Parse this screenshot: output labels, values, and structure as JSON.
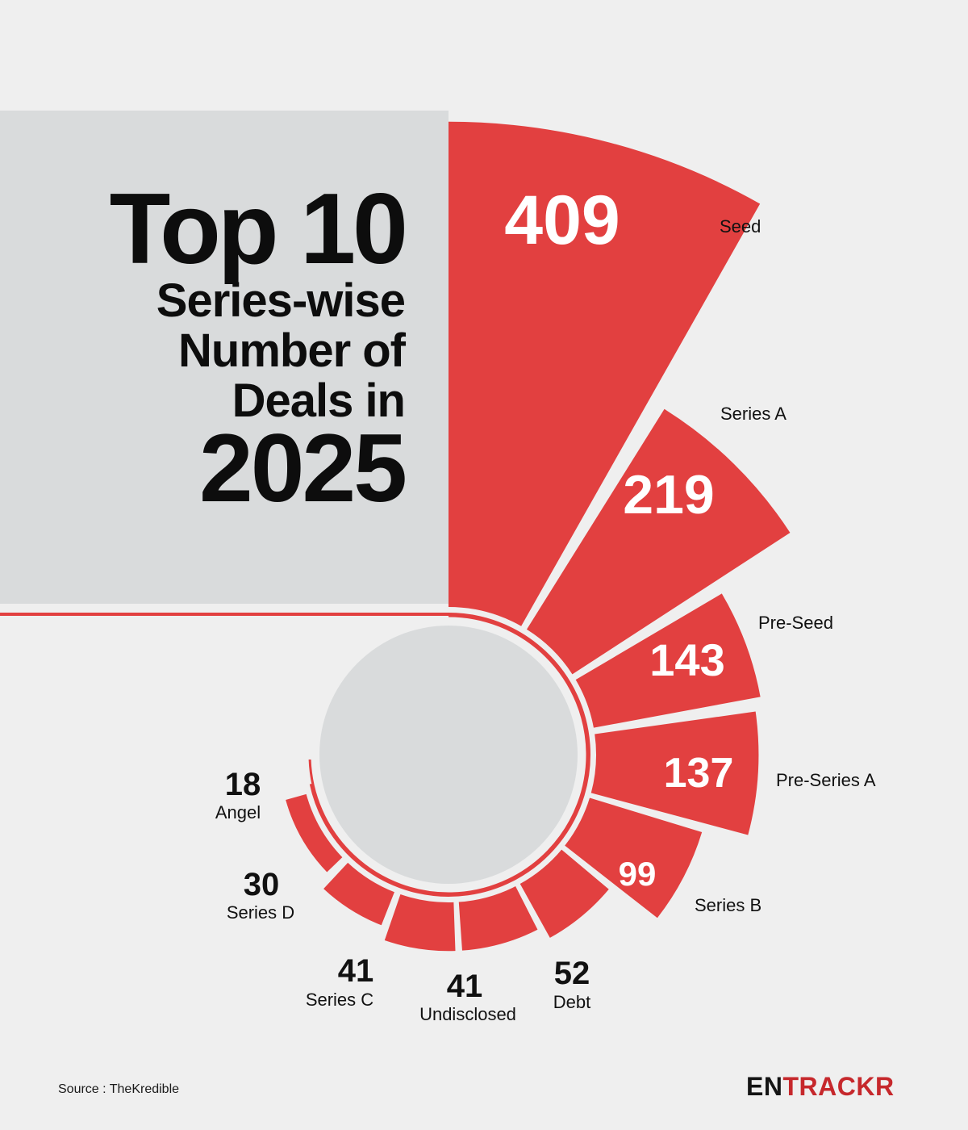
{
  "title": {
    "line1": "Top 10",
    "line2": "Series-wise",
    "line3": "Number of",
    "line4": "Deals in",
    "line5": "2025"
  },
  "source": "Source : TheKredible",
  "brand": {
    "part1": "EN",
    "part2": "TRACKR"
  },
  "colors": {
    "accent": "#e24040",
    "panel": "#d9dbdc",
    "background": "#efefef",
    "text": "#0d0d0d"
  },
  "chart_data": {
    "type": "bar",
    "categories": [
      "Seed",
      "Series A",
      "Pre-Seed",
      "Pre-Series A",
      "Series B",
      "Debt",
      "Undisclosed",
      "Series C",
      "Series D",
      "Angel"
    ],
    "values": [
      409,
      219,
      143,
      137,
      99,
      52,
      41,
      41,
      30,
      18
    ],
    "value_labels": [
      "409",
      "219",
      "143",
      "137",
      "99",
      "52",
      "41",
      "41",
      "30",
      "18"
    ],
    "title": "Top 10 Series-wise Number of Deals in 2025"
  }
}
